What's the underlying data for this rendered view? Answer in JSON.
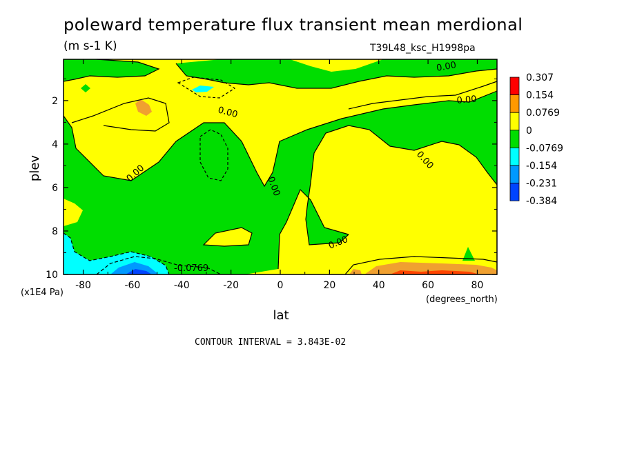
{
  "chart_data": {
    "type": "heatmap",
    "title": "poleward temperature flux transient mean merdional",
    "units": "(m s-1 K)",
    "dataset": "T39L48_ksc_H1998pa",
    "xlabel": "lat",
    "x_units": "(degrees_north)",
    "ylabel": "plev",
    "y_units": "(x1E4 Pa)",
    "contour_interval_text": "CONTOUR INTERVAL = 3.843E-02",
    "xlim": [
      -88,
      88
    ],
    "ylim": [
      0.1,
      10
    ],
    "y_reversed": true,
    "x_ticks": [
      -80,
      -60,
      -40,
      -20,
      0,
      20,
      40,
      60,
      80
    ],
    "y_ticks": [
      2,
      4,
      6,
      8,
      10
    ],
    "contour_labels": [
      "0.00",
      "0.00",
      "0.00",
      "0.00",
      "0.00",
      "0.00",
      "0.00",
      "-0.0769"
    ],
    "colorbar": {
      "levels": [
        "0.307",
        "0.154",
        "0.0769",
        "0",
        "-0.0769",
        "-0.154",
        "-0.231",
        "-0.384"
      ],
      "colors": [
        "#ff0000",
        "#ff9900",
        "#ffff00",
        "#00dd00",
        "#00ffff",
        "#0099ff",
        "#0044ff"
      ]
    },
    "fill_colors": {
      "positive_low": "#ffff00",
      "negative_low": "#00dd00",
      "positive_mid": "#f0a030",
      "positive_high": "#ff4400",
      "negative_mid": "#00ffff",
      "negative_high": "#0099ff",
      "negative_max": "#0044ff"
    }
  }
}
